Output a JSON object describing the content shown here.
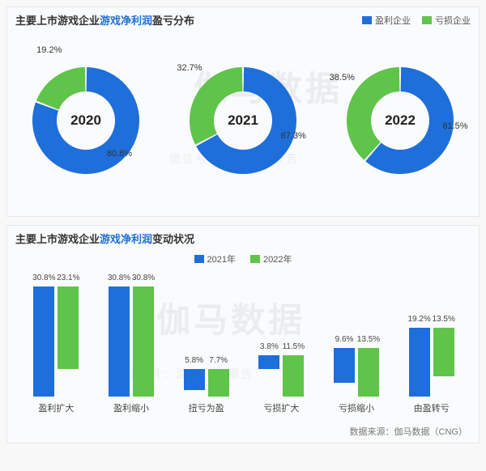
{
  "colors": {
    "profit": "#1e6fd9",
    "loss": "#5fc44a",
    "panel_bg": "#fafbfc",
    "text": "#333333",
    "accent": "#1e6fd9"
  },
  "watermark": {
    "main": "伽马数据",
    "sub": "微信号：游戏产业报告"
  },
  "chart1": {
    "title_pre": "主要上市游戏企业",
    "title_accent": "游戏净利润",
    "title_post": "盈亏分布",
    "legend": [
      {
        "label": "盈利企业",
        "color": "#1e6fd9"
      },
      {
        "label": "亏损企业",
        "color": "#5fc44a"
      }
    ],
    "donuts": [
      {
        "year": "2020",
        "profit": 80.8,
        "loss": 19.2
      },
      {
        "year": "2021",
        "profit": 67.3,
        "loss": 32.7
      },
      {
        "year": "2022",
        "profit": 61.5,
        "loss": 38.5
      }
    ],
    "donut_style": {
      "outer_r": 66,
      "inner_r": 36,
      "gap_deg": 2
    }
  },
  "chart2": {
    "title_pre": "主要上市游戏企业",
    "title_accent": "游戏净利润",
    "title_post": "变动状况",
    "legend": [
      {
        "label": "2021年",
        "color": "#1e6fd9"
      },
      {
        "label": "2022年",
        "color": "#5fc44a"
      }
    ],
    "ymax": 34,
    "categories": [
      {
        "name": "盈利扩大",
        "v2021": 30.8,
        "v2022": 23.1
      },
      {
        "name": "盈利缩小",
        "v2021": 30.8,
        "v2022": 30.8
      },
      {
        "name": "扭亏为盈",
        "v2021": 5.8,
        "v2022": 7.7
      },
      {
        "name": "亏损扩大",
        "v2021": 3.8,
        "v2022": 11.5
      },
      {
        "name": "亏损缩小",
        "v2021": 9.6,
        "v2022": 13.5
      },
      {
        "name": "由盈转亏",
        "v2021": 19.2,
        "v2022": 13.5
      }
    ]
  },
  "source": "数据来源：伽马数据（CNG）"
}
